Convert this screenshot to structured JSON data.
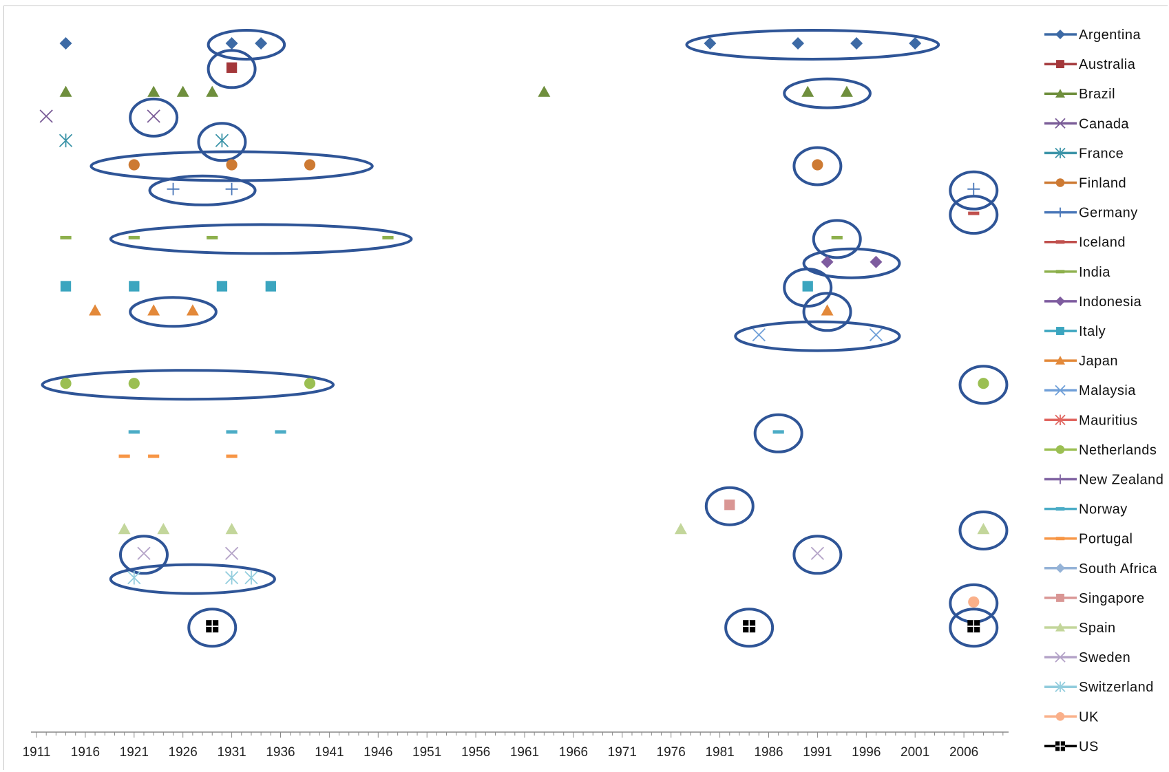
{
  "chart_data": {
    "type": "scatter",
    "title": "",
    "xlabel": "",
    "ylabel": "",
    "x_ticks": [
      1911,
      1916,
      1921,
      1926,
      1931,
      1936,
      1941,
      1946,
      1951,
      1956,
      1961,
      1966,
      1971,
      1976,
      1981,
      1986,
      1991,
      1996,
      2001,
      2006
    ],
    "xlim": [
      1911,
      2015
    ],
    "legend_position": "right",
    "grid": false,
    "series": [
      {
        "name": "Argentina",
        "color": "#3d6aa5",
        "marker": "diamond",
        "points": [
          1914,
          1931,
          1934,
          1980,
          1989,
          1995,
          2001
        ],
        "circled": [
          [
            1931,
            1934
          ],
          [
            1980,
            2001
          ]
        ]
      },
      {
        "name": "Australia",
        "color": "#a3373a",
        "marker": "square",
        "points": [
          1931
        ],
        "circled": [
          [
            1931,
            1931
          ]
        ]
      },
      {
        "name": "Brazil",
        "color": "#6f8f3d",
        "marker": "triangle",
        "points": [
          1914,
          1923,
          1926,
          1929,
          1963,
          1990,
          1994
        ],
        "circled": [
          [
            1990,
            1994
          ]
        ]
      },
      {
        "name": "Canada",
        "color": "#7a5c97",
        "marker": "x",
        "points": [
          1912,
          1923
        ],
        "circled": [
          [
            1923,
            1923
          ]
        ]
      },
      {
        "name": "France",
        "color": "#3c94a8",
        "marker": "star",
        "points": [
          1914,
          1930
        ],
        "circled": [
          [
            1930,
            1930
          ]
        ]
      },
      {
        "name": "Finland",
        "color": "#cd7a33",
        "marker": "circle",
        "points": [
          1921,
          1931,
          1939,
          1991
        ],
        "circled": [
          [
            1919,
            1943
          ],
          [
            1991,
            1991
          ]
        ]
      },
      {
        "name": "Germany",
        "color": "#4876b8",
        "marker": "plus",
        "points": [
          1925,
          1931,
          2007
        ],
        "circled": [
          [
            1925,
            1931
          ],
          [
            2007,
            2007
          ]
        ]
      },
      {
        "name": "Iceland",
        "color": "#c0504d",
        "marker": "dash",
        "points": [
          2007
        ],
        "circled": [
          [
            2007,
            2007
          ]
        ]
      },
      {
        "name": "India",
        "color": "#8db04c",
        "marker": "dash",
        "points": [
          1914,
          1921,
          1929,
          1947,
          1993
        ],
        "circled": [
          [
            1921,
            1947
          ],
          [
            1993,
            1993
          ]
        ]
      },
      {
        "name": "Indonesia",
        "color": "#7e5c9f",
        "marker": "diamond",
        "points": [
          1992,
          1997
        ],
        "circled": [
          [
            1992,
            1997
          ]
        ]
      },
      {
        "name": "Italy",
        "color": "#3ba5bf",
        "marker": "square",
        "points": [
          1914,
          1921,
          1930,
          1935,
          1990
        ],
        "circled": [
          [
            1990,
            1990
          ]
        ]
      },
      {
        "name": "Japan",
        "color": "#e3893a",
        "marker": "triangle",
        "points": [
          1917,
          1923,
          1927,
          1992
        ],
        "circled": [
          [
            1923,
            1927
          ],
          [
            1992,
            1992
          ]
        ]
      },
      {
        "name": "Malaysia",
        "color": "#6f9fd8",
        "marker": "x",
        "points": [
          1985,
          1997
        ],
        "circled": [
          [
            1985,
            1997
          ]
        ]
      },
      {
        "name": "Mauritius",
        "color": "#e06660",
        "marker": "star",
        "points": [],
        "circled": []
      },
      {
        "name": "Netherlands",
        "color": "#9bbf52",
        "marker": "circle",
        "points": [
          1914,
          1921,
          1939,
          2008
        ],
        "circled": [
          [
            1914,
            1939
          ],
          [
            2008,
            2008
          ]
        ]
      },
      {
        "name": "New Zealand",
        "color": "#8064a2",
        "marker": "plus",
        "points": [],
        "circled": []
      },
      {
        "name": "Norway",
        "color": "#4bacc6",
        "marker": "dash",
        "points": [
          1921,
          1931,
          1936,
          1987
        ],
        "circled": [
          [
            1987,
            1987
          ]
        ]
      },
      {
        "name": "Portugal",
        "color": "#f79646",
        "marker": "dash",
        "points": [
          1920,
          1923,
          1931
        ],
        "circled": []
      },
      {
        "name": "South Africa",
        "color": "#95b3d7",
        "marker": "diamond",
        "points": [],
        "circled": []
      },
      {
        "name": "Singapore",
        "color": "#d99694",
        "marker": "square",
        "points": [
          1982
        ],
        "circled": [
          [
            1982,
            1982
          ]
        ]
      },
      {
        "name": "Spain",
        "color": "#c3d69b",
        "marker": "triangle",
        "points": [
          1920,
          1924,
          1931,
          1977,
          2008
        ],
        "circled": [
          [
            2008,
            2008
          ]
        ]
      },
      {
        "name": "Sweden",
        "color": "#b3a2c7",
        "marker": "x",
        "points": [
          1922,
          1931,
          1991
        ],
        "circled": [
          [
            1922,
            1922
          ],
          [
            1991,
            1991
          ]
        ]
      },
      {
        "name": "Switzerland",
        "color": "#93cddd",
        "marker": "star",
        "points": [
          1921,
          1931,
          1933
        ],
        "circled": [
          [
            1921,
            1933
          ]
        ]
      },
      {
        "name": "UK",
        "color": "#fab08a",
        "marker": "circle",
        "points": [
          2007
        ],
        "circled": [
          [
            2007,
            2007
          ]
        ]
      },
      {
        "name": "US",
        "color": "#000000",
        "marker": "grid-square",
        "points": [
          1929,
          1984,
          2007
        ],
        "circled": [
          [
            1929,
            1929
          ],
          [
            1984,
            1984
          ],
          [
            2007,
            2007
          ]
        ]
      }
    ]
  }
}
